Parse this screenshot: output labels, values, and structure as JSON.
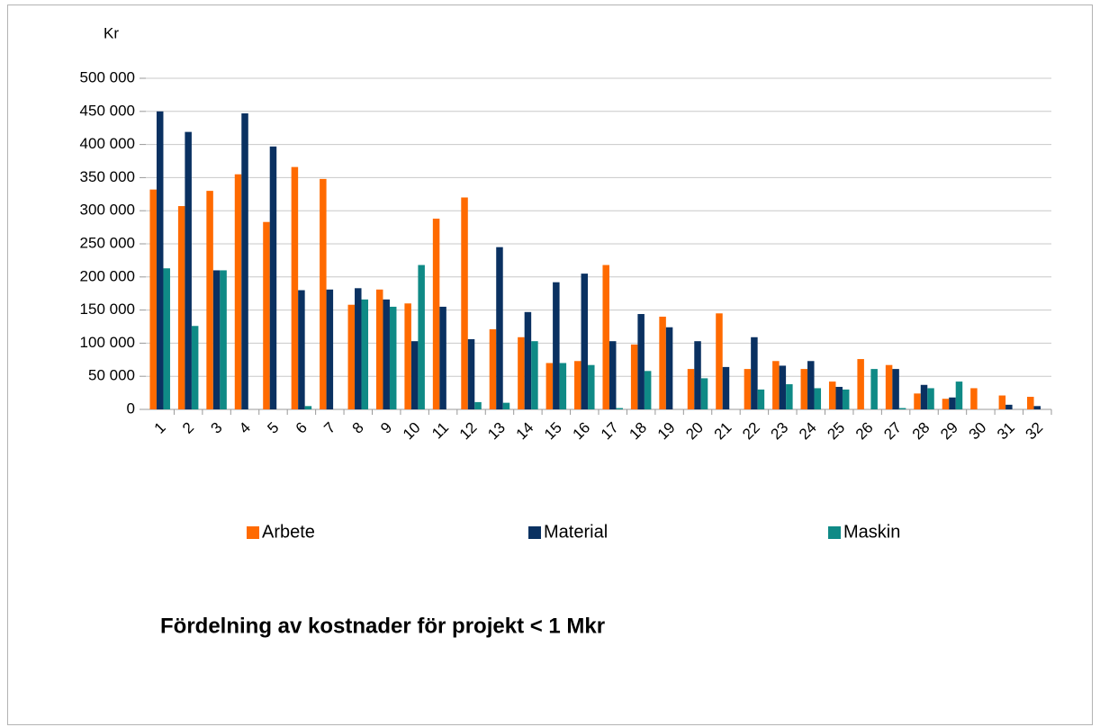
{
  "chart_data": {
    "type": "bar",
    "title": "Fördelning av kostnader för projekt < 1 Mkr",
    "y_label": "Kr",
    "categories": [
      "1",
      "2",
      "3",
      "4",
      "5",
      "6",
      "7",
      "8",
      "9",
      "10",
      "11",
      "12",
      "13",
      "14",
      "15",
      "16",
      "17",
      "18",
      "19",
      "20",
      "21",
      "22",
      "23",
      "24",
      "25",
      "26",
      "27",
      "28",
      "29",
      "30",
      "31",
      "32"
    ],
    "series": [
      {
        "name": "Arbete",
        "color": "#ff6a00",
        "values": [
          332000,
          307000,
          330000,
          355000,
          283000,
          366000,
          348000,
          158000,
          181000,
          160000,
          288000,
          320000,
          121000,
          109000,
          70000,
          73000,
          218000,
          98000,
          140000,
          61000,
          145000,
          61000,
          73000,
          61000,
          42000,
          76000,
          67000,
          24000,
          16000,
          32000,
          21000,
          19000
        ]
      },
      {
        "name": "Material",
        "color": "#0a3161",
        "values": [
          450000,
          419000,
          210000,
          447000,
          397000,
          180000,
          181000,
          183000,
          166000,
          103000,
          155000,
          106000,
          245000,
          147000,
          192000,
          205000,
          103000,
          144000,
          124000,
          103000,
          64000,
          109000,
          66000,
          73000,
          34000,
          0,
          61000,
          37000,
          18000,
          0,
          7000,
          5000
        ]
      },
      {
        "name": "Maskin",
        "color": "#0f8a86",
        "values": [
          213000,
          126000,
          210000,
          0,
          0,
          5000,
          0,
          166000,
          155000,
          218000,
          0,
          11000,
          10000,
          103000,
          70000,
          67000,
          2000,
          58000,
          0,
          47000,
          0,
          30000,
          38000,
          32000,
          30000,
          61000,
          2000,
          32000,
          42000,
          0,
          0,
          0
        ]
      }
    ],
    "ylim": [
      0,
      500000
    ],
    "yticks": [
      0,
      {
        "value": 50000,
        "label": "50 000"
      },
      {
        "value": 100000,
        "label": "100 000"
      },
      {
        "value": 150000,
        "label": "150 000"
      },
      {
        "value": 200000,
        "label": "200 000"
      },
      {
        "value": 250000,
        "label": "250 000"
      },
      {
        "value": 300000,
        "label": "300 000"
      },
      {
        "value": 350000,
        "label": "350 000"
      },
      {
        "value": 400000,
        "label": "400 000"
      },
      {
        "value": 450000,
        "label": "450 000"
      },
      {
        "value": 500000,
        "label": "500 000"
      }
    ],
    "grid": true
  }
}
